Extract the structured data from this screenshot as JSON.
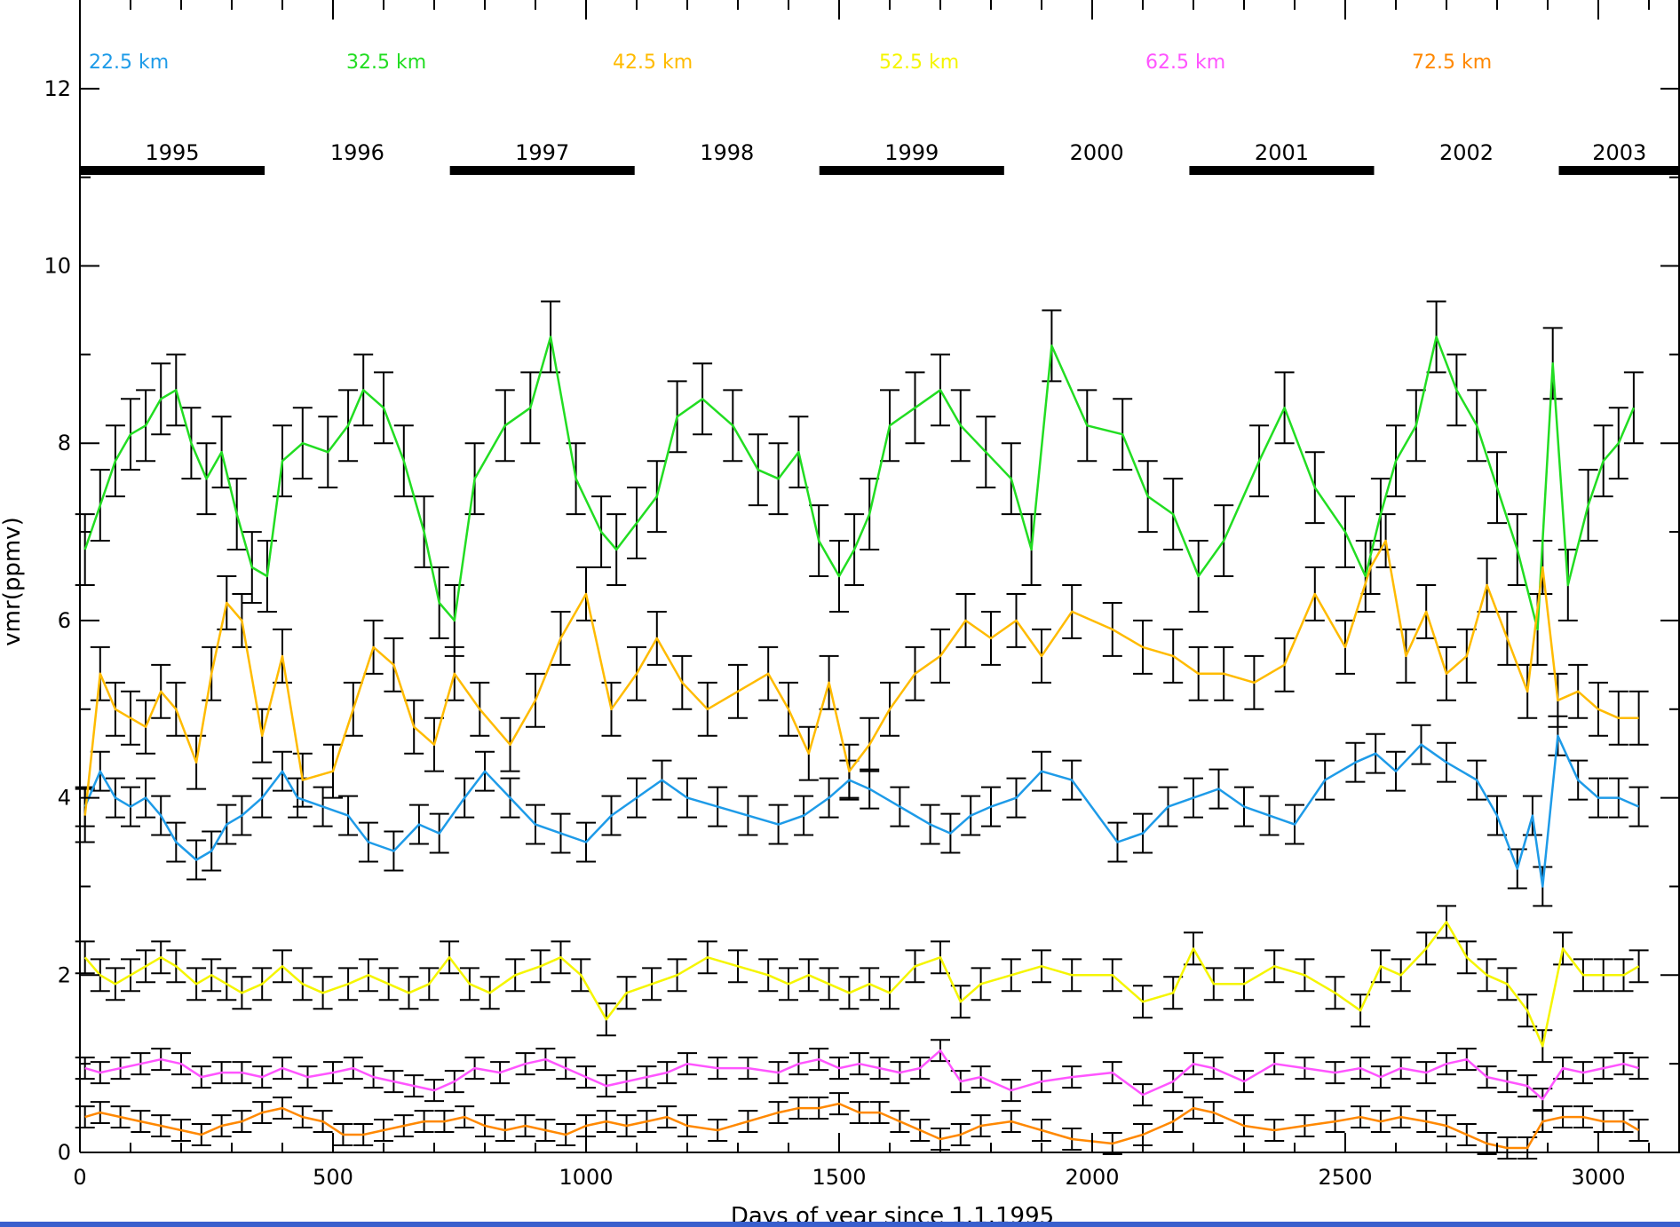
{
  "chart_data": {
    "type": "line",
    "xlabel": "Days of year since 1.1.1995",
    "ylabel": "vmr(ppmv)",
    "xlim": [
      0,
      3200
    ],
    "ylim": [
      0,
      13
    ],
    "x_ticks": [
      0,
      500,
      1000,
      1500,
      2000,
      2500,
      3000
    ],
    "x_tick_labels": [
      "0",
      "500",
      "1000",
      "1500",
      "2000",
      "2500",
      "3000"
    ],
    "y_ticks": [
      0,
      2,
      4,
      6,
      8,
      10,
      12
    ],
    "y_tick_labels": [
      "0",
      "2",
      "4",
      "6",
      "8",
      "10",
      "12"
    ],
    "error_bar_color": "#000000",
    "year_bands": [
      {
        "label": "1995",
        "start": 0,
        "end": 365,
        "bar": true
      },
      {
        "label": "1996",
        "start": 365,
        "end": 731,
        "bar": false
      },
      {
        "label": "1997",
        "start": 731,
        "end": 1096,
        "bar": true
      },
      {
        "label": "1998",
        "start": 1096,
        "end": 1461,
        "bar": false
      },
      {
        "label": "1999",
        "start": 1461,
        "end": 1826,
        "bar": true
      },
      {
        "label": "2000",
        "start": 1826,
        "end": 2192,
        "bar": false
      },
      {
        "label": "2001",
        "start": 2192,
        "end": 2557,
        "bar": true
      },
      {
        "label": "2002",
        "start": 2557,
        "end": 2922,
        "bar": false
      },
      {
        "label": "2003",
        "start": 2922,
        "end": 3200,
        "bar": true
      }
    ],
    "series": [
      {
        "name": "22.5 km",
        "color": "#1e9be8",
        "err": 0.22,
        "x": [
          10,
          40,
          70,
          100,
          130,
          160,
          190,
          230,
          260,
          290,
          320,
          360,
          400,
          430,
          480,
          530,
          570,
          620,
          670,
          710,
          760,
          800,
          850,
          900,
          950,
          1000,
          1050,
          1100,
          1150,
          1200,
          1260,
          1320,
          1380,
          1430,
          1480,
          1520,
          1560,
          1620,
          1680,
          1720,
          1760,
          1800,
          1850,
          1900,
          1960,
          2050,
          2100,
          2150,
          2200,
          2250,
          2300,
          2350,
          2400,
          2460,
          2520,
          2560,
          2600,
          2650,
          2700,
          2760,
          2800,
          2840,
          2870,
          2890,
          2920,
          2960,
          3000,
          3040,
          3080
        ],
        "y": [
          3.9,
          4.3,
          4.0,
          3.9,
          4.0,
          3.8,
          3.5,
          3.3,
          3.4,
          3.7,
          3.8,
          4.0,
          4.3,
          4.0,
          3.9,
          3.8,
          3.5,
          3.4,
          3.7,
          3.6,
          4.0,
          4.3,
          4.0,
          3.7,
          3.6,
          3.5,
          3.8,
          4.0,
          4.2,
          4.0,
          3.9,
          3.8,
          3.7,
          3.8,
          4.0,
          4.2,
          4.1,
          3.9,
          3.7,
          3.6,
          3.8,
          3.9,
          4.0,
          4.3,
          4.2,
          3.5,
          3.6,
          3.9,
          4.0,
          4.1,
          3.9,
          3.8,
          3.7,
          4.2,
          4.4,
          4.5,
          4.3,
          4.6,
          4.4,
          4.2,
          3.8,
          3.2,
          3.8,
          3.0,
          4.7,
          4.2,
          4.0,
          4.0,
          3.9
        ]
      },
      {
        "name": "32.5 km",
        "color": "#22dd22",
        "err": 0.4,
        "x": [
          10,
          40,
          70,
          100,
          130,
          160,
          190,
          220,
          250,
          280,
          310,
          340,
          370,
          400,
          440,
          490,
          530,
          560,
          600,
          640,
          680,
          710,
          740,
          780,
          840,
          890,
          930,
          980,
          1030,
          1060,
          1100,
          1140,
          1180,
          1230,
          1290,
          1340,
          1380,
          1420,
          1460,
          1500,
          1530,
          1560,
          1600,
          1650,
          1700,
          1740,
          1790,
          1840,
          1880,
          1920,
          1990,
          2060,
          2110,
          2160,
          2210,
          2260,
          2330,
          2380,
          2440,
          2500,
          2540,
          2570,
          2600,
          2640,
          2680,
          2720,
          2760,
          2800,
          2840,
          2880,
          2910,
          2940,
          2980,
          3010,
          3040,
          3070
        ],
        "y": [
          6.8,
          7.3,
          7.8,
          8.1,
          8.2,
          8.5,
          8.6,
          8.0,
          7.6,
          7.9,
          7.2,
          6.6,
          6.5,
          7.8,
          8.0,
          7.9,
          8.2,
          8.6,
          8.4,
          7.8,
          7.0,
          6.2,
          6.0,
          7.6,
          8.2,
          8.4,
          9.2,
          7.6,
          7.0,
          6.8,
          7.1,
          7.4,
          8.3,
          8.5,
          8.2,
          7.7,
          7.6,
          7.9,
          6.9,
          6.5,
          6.8,
          7.2,
          8.2,
          8.4,
          8.6,
          8.2,
          7.9,
          7.6,
          6.8,
          9.1,
          8.2,
          8.1,
          7.4,
          7.2,
          6.5,
          6.9,
          7.8,
          8.4,
          7.5,
          7.0,
          6.5,
          7.2,
          7.8,
          8.2,
          9.2,
          8.6,
          8.2,
          7.5,
          6.8,
          5.9,
          8.9,
          6.4,
          7.3,
          7.8,
          8.0,
          8.4
        ]
      },
      {
        "name": "42.5 km",
        "color": "#ffbb00",
        "err": 0.3,
        "x": [
          10,
          40,
          70,
          100,
          130,
          160,
          190,
          230,
          260,
          290,
          320,
          360,
          400,
          440,
          500,
          540,
          580,
          620,
          660,
          700,
          740,
          790,
          850,
          900,
          950,
          1000,
          1050,
          1100,
          1140,
          1190,
          1240,
          1300,
          1360,
          1400,
          1440,
          1480,
          1520,
          1560,
          1600,
          1650,
          1700,
          1750,
          1800,
          1850,
          1900,
          1960,
          2040,
          2100,
          2160,
          2210,
          2260,
          2320,
          2380,
          2440,
          2500,
          2550,
          2580,
          2620,
          2660,
          2700,
          2740,
          2780,
          2820,
          2860,
          2890,
          2920,
          2960,
          3000,
          3040,
          3080
        ],
        "y": [
          3.8,
          5.4,
          5.0,
          4.9,
          4.8,
          5.2,
          5.0,
          4.4,
          5.4,
          6.2,
          6.0,
          4.7,
          5.6,
          4.2,
          4.3,
          5.0,
          5.7,
          5.5,
          4.8,
          4.6,
          5.4,
          5.0,
          4.6,
          5.1,
          5.8,
          6.3,
          5.0,
          5.4,
          5.8,
          5.3,
          5.0,
          5.2,
          5.4,
          5.0,
          4.5,
          5.3,
          4.3,
          4.6,
          5.0,
          5.4,
          5.6,
          6.0,
          5.8,
          6.0,
          5.6,
          6.1,
          5.9,
          5.7,
          5.6,
          5.4,
          5.4,
          5.3,
          5.5,
          6.3,
          5.7,
          6.6,
          6.9,
          5.6,
          6.1,
          5.4,
          5.6,
          6.4,
          5.8,
          5.2,
          6.6,
          5.1,
          5.2,
          5.0,
          4.9,
          4.9
        ]
      },
      {
        "name": "52.5 km",
        "color": "#f5f500",
        "err": 0.18,
        "x": [
          10,
          40,
          70,
          100,
          130,
          160,
          190,
          230,
          260,
          290,
          320,
          360,
          400,
          440,
          480,
          530,
          570,
          610,
          650,
          690,
          730,
          770,
          810,
          860,
          910,
          950,
          990,
          1040,
          1080,
          1130,
          1180,
          1240,
          1300,
          1360,
          1400,
          1440,
          1480,
          1520,
          1560,
          1600,
          1650,
          1700,
          1740,
          1780,
          1840,
          1900,
          1960,
          2040,
          2100,
          2160,
          2200,
          2240,
          2300,
          2360,
          2420,
          2480,
          2530,
          2570,
          2610,
          2660,
          2700,
          2740,
          2780,
          2820,
          2860,
          2890,
          2930,
          2970,
          3010,
          3050,
          3080
        ],
        "y": [
          2.2,
          2.0,
          1.9,
          2.0,
          2.1,
          2.2,
          2.1,
          1.9,
          2.0,
          1.9,
          1.8,
          1.9,
          2.1,
          1.9,
          1.8,
          1.9,
          2.0,
          1.9,
          1.8,
          1.9,
          2.2,
          1.9,
          1.8,
          2.0,
          2.1,
          2.2,
          2.0,
          1.5,
          1.8,
          1.9,
          2.0,
          2.2,
          2.1,
          2.0,
          1.9,
          2.0,
          1.9,
          1.8,
          1.9,
          1.8,
          2.1,
          2.2,
          1.7,
          1.9,
          2.0,
          2.1,
          2.0,
          2.0,
          1.7,
          1.8,
          2.3,
          1.9,
          1.9,
          2.1,
          2.0,
          1.8,
          1.6,
          2.1,
          2.0,
          2.3,
          2.6,
          2.2,
          2.0,
          1.9,
          1.6,
          1.2,
          2.3,
          2.0,
          2.0,
          2.0,
          2.1
        ]
      },
      {
        "name": "62.5 km",
        "color": "#ff55ff",
        "err": 0.12,
        "x": [
          10,
          40,
          80,
          120,
          160,
          200,
          240,
          280,
          320,
          360,
          400,
          450,
          500,
          540,
          580,
          620,
          660,
          700,
          740,
          780,
          830,
          880,
          920,
          960,
          1000,
          1040,
          1080,
          1120,
          1160,
          1200,
          1260,
          1320,
          1380,
          1420,
          1460,
          1500,
          1540,
          1580,
          1620,
          1660,
          1700,
          1740,
          1780,
          1840,
          1900,
          1960,
          2040,
          2100,
          2160,
          2200,
          2240,
          2300,
          2360,
          2420,
          2480,
          2530,
          2570,
          2610,
          2660,
          2700,
          2740,
          2780,
          2820,
          2860,
          2890,
          2930,
          2970,
          3010,
          3050,
          3080
        ],
        "y": [
          0.95,
          0.9,
          0.95,
          1.0,
          1.05,
          1.0,
          0.85,
          0.9,
          0.9,
          0.85,
          0.95,
          0.85,
          0.9,
          0.95,
          0.85,
          0.8,
          0.75,
          0.7,
          0.8,
          0.95,
          0.9,
          1.0,
          1.05,
          0.95,
          0.85,
          0.75,
          0.8,
          0.85,
          0.9,
          1.0,
          0.95,
          0.95,
          0.9,
          1.0,
          1.05,
          0.95,
          1.0,
          0.95,
          0.9,
          0.95,
          1.15,
          0.8,
          0.85,
          0.7,
          0.8,
          0.85,
          0.9,
          0.65,
          0.8,
          1.0,
          0.95,
          0.8,
          1.0,
          0.95,
          0.9,
          0.95,
          0.85,
          0.95,
          0.9,
          1.0,
          1.05,
          0.85,
          0.8,
          0.75,
          0.6,
          0.95,
          0.9,
          0.95,
          1.0,
          0.95
        ]
      },
      {
        "name": "72.5 km",
        "color": "#ff8800",
        "err": 0.12,
        "x": [
          10,
          40,
          80,
          120,
          160,
          200,
          240,
          280,
          320,
          360,
          400,
          440,
          480,
          520,
          560,
          600,
          640,
          680,
          720,
          760,
          800,
          840,
          880,
          920,
          960,
          1000,
          1040,
          1080,
          1120,
          1160,
          1200,
          1260,
          1320,
          1380,
          1420,
          1460,
          1500,
          1540,
          1580,
          1620,
          1660,
          1700,
          1740,
          1780,
          1840,
          1900,
          1960,
          2040,
          2100,
          2160,
          2200,
          2240,
          2300,
          2360,
          2420,
          2480,
          2530,
          2570,
          2610,
          2660,
          2700,
          2740,
          2780,
          2820,
          2860,
          2890,
          2930,
          2970,
          3010,
          3050,
          3080
        ],
        "y": [
          0.4,
          0.45,
          0.4,
          0.35,
          0.3,
          0.25,
          0.2,
          0.3,
          0.35,
          0.45,
          0.5,
          0.4,
          0.35,
          0.2,
          0.2,
          0.25,
          0.3,
          0.35,
          0.35,
          0.4,
          0.3,
          0.25,
          0.3,
          0.25,
          0.2,
          0.3,
          0.35,
          0.3,
          0.35,
          0.4,
          0.3,
          0.25,
          0.35,
          0.45,
          0.5,
          0.5,
          0.55,
          0.45,
          0.45,
          0.35,
          0.25,
          0.15,
          0.2,
          0.3,
          0.35,
          0.25,
          0.15,
          0.1,
          0.2,
          0.35,
          0.5,
          0.45,
          0.3,
          0.25,
          0.3,
          0.35,
          0.4,
          0.35,
          0.4,
          0.35,
          0.3,
          0.2,
          0.1,
          0.05,
          0.05,
          0.35,
          0.4,
          0.4,
          0.35,
          0.35,
          0.25
        ]
      }
    ]
  }
}
